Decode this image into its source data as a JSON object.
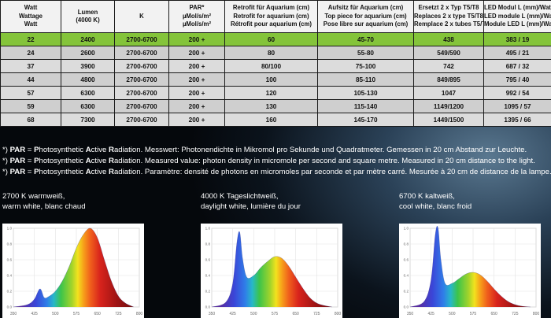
{
  "table": {
    "headers": [
      [
        "Watt",
        "Wattage",
        "Watt"
      ],
      [
        "Lumen",
        "(4000 K)"
      ],
      [
        "K"
      ],
      [
        "PAR*",
        "µMol/s/m²",
        "µMol/s/m²"
      ],
      [
        "Retrofit für Aquarium (cm)",
        "Retrofit for aquarium (cm)",
        "Rétrofit pour aquarium (cm)"
      ],
      [
        "Aufsitz für Aquarium (cm)",
        "Top piece for aquarium (cm)",
        "Pose libre sur aquarium (cm)"
      ],
      [
        "Ersetzt 2 x Typ T5/T8",
        "Replaces 2 x type T5/T8",
        "Remplace 2 x tubes T5/T8"
      ],
      [
        "LED Modul L (mm)/Watt",
        "LED module L (mm)/Watt",
        "Module LED L (mm)/Watt"
      ]
    ],
    "rows": [
      [
        "22",
        "2400",
        "2700-6700",
        "200 +",
        "60",
        "45-70",
        "438",
        "383 / 19"
      ],
      [
        "24",
        "2600",
        "2700-6700",
        "200 +",
        "80",
        "55-80",
        "549/590",
        "495 / 21"
      ],
      [
        "37",
        "3900",
        "2700-6700",
        "200 +",
        "80/100",
        "75-100",
        "742",
        "687 / 32"
      ],
      [
        "44",
        "4800",
        "2700-6700",
        "200 +",
        "100",
        "85-110",
        "849/895",
        "795 / 40"
      ],
      [
        "57",
        "6300",
        "2700-6700",
        "200 +",
        "120",
        "105-130",
        "1047",
        "992 / 54"
      ],
      [
        "59",
        "6300",
        "2700-6700",
        "200 +",
        "130",
        "115-140",
        "1149/1200",
        "1095 / 57"
      ],
      [
        "68",
        "7300",
        "2700-6700",
        "200 +",
        "160",
        "145-170",
        "1449/1500",
        "1395 / 66"
      ]
    ]
  },
  "notes": [
    {
      "prefix": "*) ",
      "par": "PAR",
      "eq": " = ",
      "p1": "P",
      "r1": "hotosynthetic ",
      "a": "A",
      "r2": "ctive ",
      "r": "R",
      "r3": "adiation. Messwert: Photonendichte in Mikromol pro Sekunde und Quadratmeter. Gemessen in 20 cm Abstand zur Leuchte."
    },
    {
      "prefix": "*) ",
      "par": "PAR",
      "eq": " = ",
      "p1": "P",
      "r1": "hotosynthetic ",
      "a": "A",
      "r2": "ctive ",
      "r": "R",
      "r3": "adiation. Measured value: photon density in micromole per second and square metre. Measured in 20 cm distance to the light."
    },
    {
      "prefix": "*) ",
      "par": "PAR",
      "eq": " = ",
      "p1": "P",
      "r1": "hotosynthetic ",
      "a": "A",
      "r2": "ctive ",
      "r": "R",
      "r3": "adiation. Paramètre: densité de photons en micromoles par seconde et par mètre carré. Mesurée à 20 cm de distance de la lampe."
    }
  ],
  "spectra": [
    {
      "caption_line1": "2700 K warmweiß,",
      "caption_line2": "warm white, blanc chaud"
    },
    {
      "caption_line1": "4000 K Tageslichtweiß,",
      "caption_line2": "daylight white, lumière du jour"
    },
    {
      "caption_line1": "6700 K kaltweiß,",
      "caption_line2": "cool white, blanc froid"
    }
  ],
  "chart_data": [
    {
      "type": "area",
      "x": [
        350,
        400,
        425,
        445,
        460,
        475,
        500,
        525,
        550,
        575,
        600,
        625,
        650,
        675,
        700,
        725,
        750,
        780
      ],
      "y": [
        0.0,
        0.03,
        0.1,
        0.23,
        0.12,
        0.13,
        0.2,
        0.33,
        0.52,
        0.75,
        0.92,
        1.0,
        0.88,
        0.6,
        0.33,
        0.14,
        0.05,
        0.0
      ],
      "xticks": [
        350,
        425,
        500,
        575,
        650,
        725,
        800
      ],
      "yticks": [
        0,
        0.2,
        0.4,
        0.6,
        0.8,
        1.0
      ],
      "ylim": [
        0,
        1.0
      ],
      "xlim": [
        350,
        800
      ],
      "grid": true
    },
    {
      "type": "area",
      "x": [
        350,
        400,
        425,
        440,
        450,
        460,
        475,
        500,
        525,
        550,
        575,
        600,
        625,
        650,
        675,
        700,
        725,
        750,
        780
      ],
      "y": [
        0.0,
        0.06,
        0.3,
        0.82,
        0.95,
        0.62,
        0.38,
        0.4,
        0.5,
        0.58,
        0.64,
        0.62,
        0.52,
        0.38,
        0.24,
        0.12,
        0.05,
        0.02,
        0.0
      ],
      "xticks": [
        350,
        425,
        500,
        575,
        650,
        725,
        800
      ],
      "yticks": [
        0,
        0.2,
        0.4,
        0.6,
        0.8,
        1.0
      ],
      "ylim": [
        0,
        1.0
      ],
      "xlim": [
        350,
        800
      ],
      "grid": true
    },
    {
      "type": "area",
      "x": [
        350,
        400,
        425,
        440,
        450,
        460,
        475,
        500,
        525,
        550,
        575,
        600,
        625,
        650,
        675,
        700,
        725,
        750,
        780
      ],
      "y": [
        0.0,
        0.07,
        0.35,
        0.92,
        1.0,
        0.6,
        0.3,
        0.3,
        0.36,
        0.42,
        0.44,
        0.41,
        0.33,
        0.23,
        0.14,
        0.07,
        0.03,
        0.01,
        0.0
      ],
      "xticks": [
        350,
        425,
        500,
        575,
        650,
        725,
        800
      ],
      "yticks": [
        0,
        0.2,
        0.4,
        0.6,
        0.8,
        1.0
      ],
      "ylim": [
        0,
        1.0
      ],
      "xlim": [
        350,
        800
      ],
      "grid": true
    }
  ]
}
